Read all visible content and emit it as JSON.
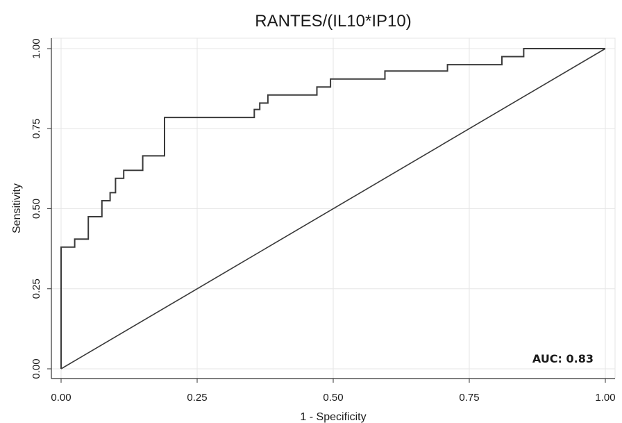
{
  "chart_data": {
    "type": "line",
    "title": "RANTES/(IL10*IP10)",
    "xlabel": "1 - Specificity",
    "ylabel": "Sensitivity",
    "xlim": [
      0,
      1
    ],
    "ylim": [
      0,
      1
    ],
    "xticks": [
      "0.00",
      "0.25",
      "0.50",
      "0.75",
      "1.00"
    ],
    "yticks": [
      "0.00",
      "0.25",
      "0.50",
      "0.75",
      "1.00"
    ],
    "grid": true,
    "annotation": "AUC: 0.83",
    "series": [
      {
        "kind": "step",
        "x": [
          0,
          0,
          0.025,
          0.025,
          0.05,
          0.05,
          0.075,
          0.075,
          0.09,
          0.09,
          0.1,
          0.1,
          0.115,
          0.115,
          0.15,
          0.15,
          0.19,
          0.19,
          0.355,
          0.355,
          0.365,
          0.365,
          0.38,
          0.38,
          0.47,
          0.47,
          0.495,
          0.495,
          0.595,
          0.595,
          0.71,
          0.71,
          0.81,
          0.81,
          0.85,
          0.85,
          1.0
        ],
        "y": [
          0,
          0.38,
          0.38,
          0.405,
          0.405,
          0.475,
          0.475,
          0.525,
          0.525,
          0.55,
          0.55,
          0.595,
          0.595,
          0.62,
          0.62,
          0.665,
          0.665,
          0.785,
          0.785,
          0.81,
          0.81,
          0.83,
          0.83,
          0.855,
          0.855,
          0.88,
          0.88,
          0.905,
          0.905,
          0.93,
          0.93,
          0.95,
          0.95,
          0.975,
          0.975,
          1.0,
          1.0
        ]
      },
      {
        "kind": "reference",
        "x": [
          0,
          1
        ],
        "y": [
          0,
          1
        ]
      }
    ]
  }
}
